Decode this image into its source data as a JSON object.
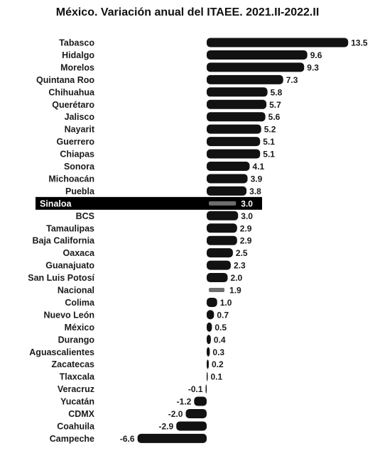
{
  "chart_data": {
    "type": "bar",
    "orientation": "horizontal",
    "title": "México. Variación anual del ITAEE. 2021.II-2022.II",
    "categories": [
      "Tabasco",
      "Hidalgo",
      "Morelos",
      "Quintana Roo",
      "Chihuahua",
      "Querétaro",
      "Jalisco",
      "Nayarit",
      "Guerrero",
      "Chiapas",
      "Sonora",
      "Michoacán",
      "Puebla",
      "Sinaloa",
      "BCS",
      "Tamaulipas",
      "Baja California",
      "Oaxaca",
      "Guanajuato",
      "San Luis Potosí",
      "Nacional",
      "Colima",
      "Nuevo León",
      "México",
      "Durango",
      "Aguascalientes",
      "Zacatecas",
      "Tlaxcala",
      "Veracruz",
      "Yucatán",
      "CDMX",
      "Coahuila",
      "Campeche"
    ],
    "values": [
      13.5,
      9.6,
      9.3,
      7.3,
      5.8,
      5.7,
      5.6,
      5.2,
      5.1,
      5.1,
      4.1,
      3.9,
      3.8,
      3.0,
      3.0,
      2.9,
      2.9,
      2.5,
      2.3,
      2.0,
      1.9,
      1.0,
      0.7,
      0.5,
      0.4,
      0.3,
      0.2,
      0.1,
      -0.1,
      -1.2,
      -2.0,
      -2.9,
      -6.6
    ],
    "value_labels": [
      "13.5",
      "9.6",
      "9.3",
      "7.3",
      "5.8",
      "5.7",
      "5.6",
      "5.2",
      "5.1",
      "5.1",
      "4.1",
      "3.9",
      "3.8",
      "3.0",
      "3.0",
      "2.9",
      "2.9",
      "2.5",
      "2.3",
      "2.0",
      "1.9",
      "1.0",
      "0.7",
      "0.5",
      "0.4",
      "0.3",
      "0.2",
      "0.1",
      "-0.1",
      "-1.2",
      "-2.0",
      "-2.9",
      "-6.6"
    ],
    "highlighted": [
      "Sinaloa",
      "Nacional"
    ],
    "xlim": [
      -6.6,
      13.5
    ],
    "grid": false,
    "colors": {
      "bar": "#121212",
      "highlight_bar": "#6e6e6e",
      "highlight_row": "#000000",
      "text": "#1a1a1a",
      "highlight_text": "#ffffff"
    }
  }
}
